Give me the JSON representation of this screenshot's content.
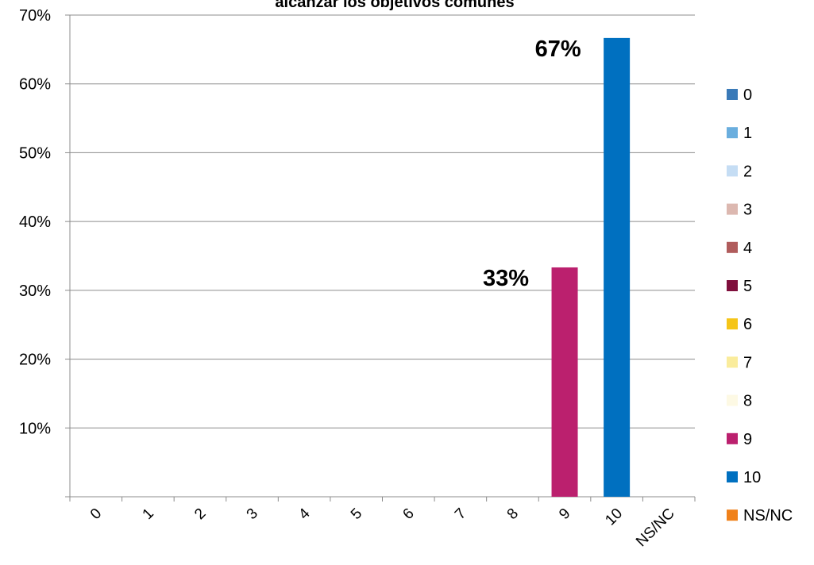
{
  "chart_data": {
    "type": "bar",
    "title": "alcanzar los objetivos comunes",
    "xlabel": "",
    "ylabel": "",
    "categories": [
      "0",
      "1",
      "2",
      "3",
      "4",
      "5",
      "6",
      "7",
      "8",
      "9",
      "10",
      "NS/NC"
    ],
    "values": [
      0,
      0,
      0,
      0,
      0,
      0,
      0,
      0,
      0,
      0.3333,
      0.6667,
      0
    ],
    "data_labels": [
      {
        "category": "9",
        "text": "33%"
      },
      {
        "category": "10",
        "text": "67%"
      }
    ],
    "ylim": [
      0,
      0.7
    ],
    "yticks": [
      {
        "value": 0.1,
        "label": "10%"
      },
      {
        "value": 0.2,
        "label": "20%"
      },
      {
        "value": 0.3,
        "label": "30%"
      },
      {
        "value": 0.4,
        "label": "40%"
      },
      {
        "value": 0.5,
        "label": "50%"
      },
      {
        "value": 0.6,
        "label": "60%"
      },
      {
        "value": 0.7,
        "label": "70%"
      }
    ],
    "grid": true,
    "legend_position": "right",
    "legend": [
      {
        "label": "0",
        "color": "#3a7ab8"
      },
      {
        "label": "1",
        "color": "#6aaede"
      },
      {
        "label": "2",
        "color": "#c5ddf4"
      },
      {
        "label": "3",
        "color": "#dcb8b0"
      },
      {
        "label": "4",
        "color": "#b05c5c"
      },
      {
        "label": "5",
        "color": "#7f0f3c"
      },
      {
        "label": "6",
        "color": "#f5c518"
      },
      {
        "label": "7",
        "color": "#faec9c"
      },
      {
        "label": "8",
        "color": "#fdf9e4"
      },
      {
        "label": "9",
        "color": "#bb206e"
      },
      {
        "label": "10",
        "color": "#0070c0"
      },
      {
        "label": "NS/NC",
        "color": "#f0811a"
      }
    ]
  }
}
